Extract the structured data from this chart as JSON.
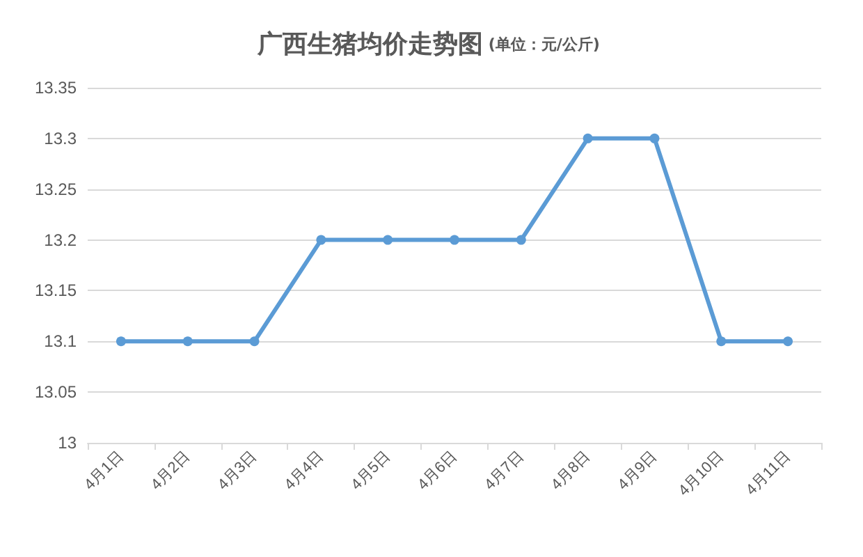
{
  "chart_data": {
    "type": "line",
    "title": "广西生猪均价走势图",
    "subtitle": "(单位：元/公斤)",
    "categories": [
      "4月1日",
      "4月2日",
      "4月3日",
      "4月4日",
      "4月5日",
      "4月6日",
      "4月7日",
      "4月8日",
      "4月9日",
      "4月10日",
      "4月11日"
    ],
    "series": [
      {
        "color": "#5b9bd5",
        "values": [
          13.1,
          13.1,
          13.1,
          13.2,
          13.2,
          13.2,
          13.2,
          13.3,
          13.3,
          13.1,
          13.1
        ]
      }
    ],
    "ylim": [
      13,
      13.35
    ],
    "yticks": [
      13,
      13.05,
      13.1,
      13.15,
      13.2,
      13.25,
      13.3,
      13.35
    ],
    "grid": "y",
    "marker": "circle",
    "line_style": "solid"
  }
}
